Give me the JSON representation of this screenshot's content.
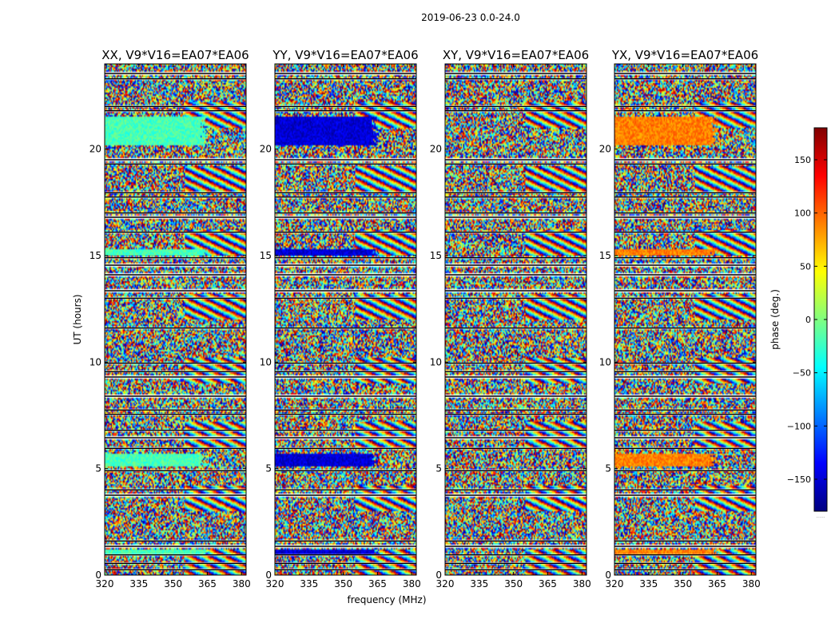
{
  "suptitle": "2019-06-23 0.0-24.0",
  "xlabel": "frequency (MHz)",
  "ylabel": "UT (hours)",
  "colorbar": {
    "label": "phase (deg.)",
    "ticks": [
      "150",
      "100",
      "50",
      "0",
      "−50",
      "−100",
      "−150"
    ],
    "tick_values": [
      150,
      100,
      50,
      0,
      -50,
      -100,
      -150
    ],
    "range": [
      -180,
      180
    ],
    "footer": "......"
  },
  "chart_data": {
    "type": "heatmap",
    "x_range": [
      320,
      382
    ],
    "y_range": [
      0,
      24
    ],
    "xticks": [
      "320",
      "335",
      "350",
      "365",
      "380"
    ],
    "xtick_values": [
      320,
      335,
      350,
      365,
      380
    ],
    "yticks": [
      "0",
      "5",
      "10",
      "15",
      "20"
    ],
    "ytick_values": [
      0,
      5,
      10,
      15,
      20
    ],
    "panels": [
      {
        "title": "XX, V9*V16=EA07*EA06",
        "key": "XX",
        "base_phase": -20
      },
      {
        "title": "YY, V9*V16=EA07*EA06",
        "key": "YY",
        "base_phase": -150
      },
      {
        "title": "XY, V9*V16=EA07*EA06",
        "key": "XY",
        "base_phase": null
      },
      {
        "title": "YX, V9*V16=EA07*EA06",
        "key": "YX",
        "base_phase": 90
      }
    ],
    "coherent_bands_hours": [
      [
        20.2,
        21.5
      ],
      [
        5.1,
        5.7
      ],
      [
        1.0,
        1.2
      ],
      [
        15.0,
        15.3
      ]
    ],
    "flagged_gaps_hours": [
      0.25,
      0.55,
      0.95,
      1.35,
      1.6,
      3.75,
      4.0,
      4.9,
      5.95,
      6.45,
      6.8,
      7.55,
      7.75,
      8.4,
      9.3,
      9.55,
      9.95,
      11.6,
      13.0,
      13.35,
      14.1,
      14.55,
      14.9,
      16.1,
      16.8,
      17.0,
      17.75,
      17.95,
      19.3,
      19.5,
      21.8,
      22.0,
      23.3,
      23.55
    ]
  }
}
